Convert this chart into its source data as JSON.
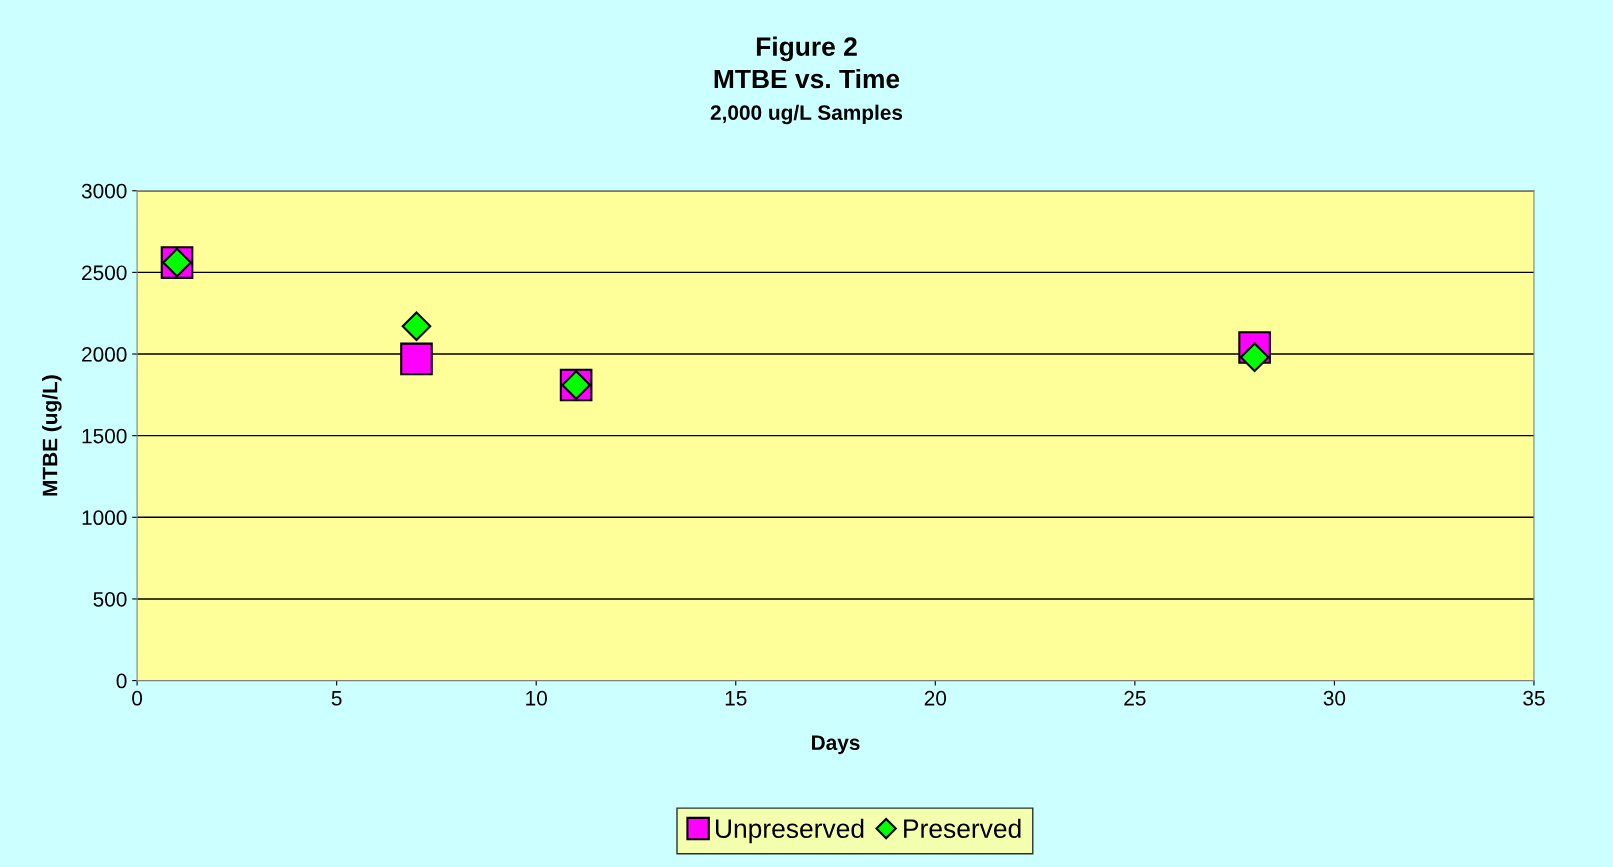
{
  "chart_data": {
    "type": "scatter",
    "title": "Figure 2\nMTBE vs. Time",
    "subtitle": "2,000 ug/L Samples",
    "xlabel": "Days",
    "ylabel": "MTBE (ug/L)",
    "series": [
      {
        "name": "Unpreserved",
        "color": "#ff00ff",
        "marker": "square",
        "x": [
          1,
          7,
          11,
          28
        ],
        "values": [
          2560,
          1970,
          1810,
          2040
        ]
      },
      {
        "name": "Preserved",
        "color": "#00ff00",
        "marker": "diamond",
        "x": [
          1,
          7,
          11,
          28
        ],
        "values": [
          2560,
          2170,
          1810,
          1980
        ]
      }
    ],
    "xlim": [
      0,
      35
    ],
    "xticks": [
      0,
      5,
      10,
      15,
      20,
      25,
      30,
      35
    ],
    "ylim": [
      0,
      3000
    ],
    "yticks": [
      0,
      500,
      1000,
      1500,
      2000,
      2500,
      3000
    ],
    "grid": "y",
    "legend": "bottom"
  }
}
